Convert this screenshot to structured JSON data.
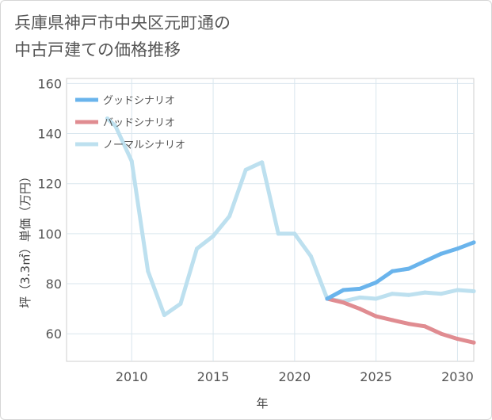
{
  "title": {
    "line1": "兵庫県神戸市中央区元町通の",
    "line2": "中古戸建ての価格推移"
  },
  "chart_data": {
    "type": "line",
    "title": "兵庫県神戸市中央区元町通の中古戸建ての価格推移",
    "xlabel": "年",
    "ylabel": "坪（3.3㎡）単価（万円）",
    "xlim": [
      2006,
      2031
    ],
    "ylim": [
      49,
      162
    ],
    "xticks": [
      2010,
      2015,
      2020,
      2025,
      2030
    ],
    "yticks": [
      60,
      80,
      100,
      120,
      140,
      160
    ],
    "grid": true,
    "legend_position": "top-left",
    "series": [
      {
        "name": "グッドシナリオ",
        "color": "#6ab4ec",
        "x": [
          2022,
          2023,
          2024,
          2025,
          2026,
          2027,
          2028,
          2029,
          2030,
          2031
        ],
        "y": [
          74,
          77.5,
          78,
          80.5,
          85,
          86,
          89,
          92,
          94,
          96.5
        ]
      },
      {
        "name": "バッドシナリオ",
        "color": "#e08c91",
        "x": [
          2022,
          2023,
          2024,
          2025,
          2026,
          2027,
          2028,
          2029,
          2030,
          2031
        ],
        "y": [
          74,
          72.5,
          70,
          67,
          65.5,
          64,
          63,
          60,
          58,
          56.5
        ]
      },
      {
        "name": "ノーマルシナリオ",
        "color": "#bde0ef",
        "x": [
          2008.5,
          2009,
          2010,
          2011,
          2012,
          2013,
          2014,
          2015,
          2016,
          2017,
          2018,
          2019,
          2020,
          2021,
          2022,
          2023,
          2024,
          2025,
          2026,
          2027,
          2028,
          2029,
          2030,
          2031
        ],
        "y": [
          146,
          143,
          129,
          85,
          67.5,
          72,
          94,
          99,
          107,
          125.5,
          128.5,
          100,
          100,
          91,
          74,
          73,
          74.5,
          74,
          76,
          75.5,
          76.5,
          76,
          77.5,
          77
        ]
      }
    ]
  }
}
